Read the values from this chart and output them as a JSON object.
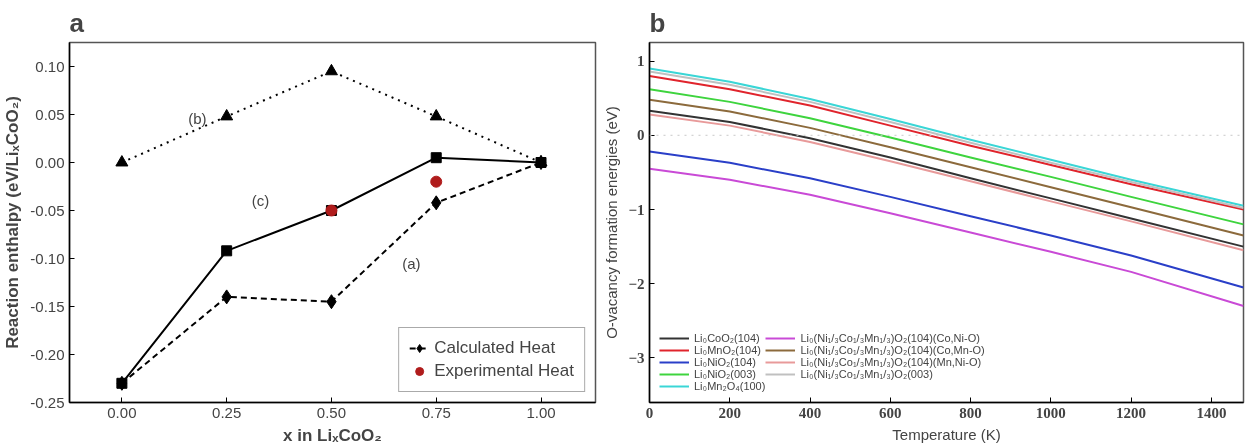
{
  "chart_data": [
    {
      "type": "line",
      "title": "a",
      "xlabel": "x in LiₓCoO₂",
      "ylabel": "Reaction enthalpy (eV/LiₓCoO₂)",
      "x": [
        0,
        0.25,
        0.5,
        0.75,
        1.0
      ],
      "xlim": [
        -0.125,
        1.13
      ],
      "ylim": [
        -0.25,
        0.125
      ],
      "xticks": [
        {
          "value": 0,
          "label": "0.00"
        },
        {
          "value": 0.25,
          "label": "0.25"
        },
        {
          "value": 0.5,
          "label": "0.50"
        },
        {
          "value": 0.75,
          "label": "0.75"
        },
        {
          "value": 1.0,
          "label": "1.00"
        }
      ],
      "yticks": [
        {
          "value": -0.25,
          "label": "-0.25"
        },
        {
          "value": -0.2,
          "label": "-0.20"
        },
        {
          "value": -0.15,
          "label": "-0.15"
        },
        {
          "value": -0.1,
          "label": "-0.10"
        },
        {
          "value": -0.05,
          "label": "-0.05"
        },
        {
          "value": 0,
          "label": "0.00"
        },
        {
          "value": 0.05,
          "label": "0.05"
        },
        {
          "value": 0.1,
          "label": "0.10"
        }
      ],
      "grid": false,
      "legend": "bottom right",
      "series": [
        {
          "name": "Calculated Heat",
          "type": "line",
          "color": "#000000",
          "marker": "diamond",
          "line_style": "dashed",
          "values": [
            -0.23,
            -0.14,
            -0.145,
            -0.042,
            0.0
          ]
        },
        {
          "type": "line",
          "color": "#000000",
          "marker": "triangle",
          "line_style": "dotted",
          "values": [
            0.0,
            0.048,
            0.095,
            0.048,
            0.0
          ]
        },
        {
          "type": "line",
          "color": "#000000",
          "marker": "square",
          "line_style": "solid",
          "values": [
            -0.23,
            -0.092,
            -0.05,
            0.005,
            0.0
          ]
        },
        {
          "name": "Experimental Heat",
          "type": "scatter",
          "color": "#b01c1c",
          "marker": "circle",
          "x": [
            0.5,
            0.75
          ],
          "values": [
            -0.05,
            -0.02
          ]
        }
      ],
      "annotations": [
        "(a)",
        "(b)",
        "(c)"
      ]
    },
    {
      "type": "line",
      "title": "b",
      "xlabel": "Temperature (K)",
      "ylabel": "O-vacancy formation energies (eV)",
      "x": [
        0,
        200,
        400,
        600,
        800,
        1000,
        1200,
        1480
      ],
      "xlim": [
        0,
        1480
      ],
      "ylim": [
        -3.6,
        1.25
      ],
      "xticks": [
        0,
        200,
        400,
        600,
        800,
        1000,
        1200,
        1400
      ],
      "yticks": [
        -3,
        -2,
        -1,
        0,
        1
      ],
      "grid": false,
      "legend": "bottom left",
      "ref_lines": [
        {
          "axis": "y",
          "value": 0,
          "color": "#c8c8c8",
          "line_style": "dotted"
        }
      ],
      "series": [
        {
          "name": "Li₀CoO₂(104)",
          "color": "#333333",
          "values": [
            0.33,
            0.18,
            -0.04,
            -0.3,
            -0.58,
            -0.85,
            -1.12,
            -1.5
          ]
        },
        {
          "name": "Li₀MnO₂(104)",
          "color": "#e0242c",
          "values": [
            0.8,
            0.62,
            0.4,
            0.13,
            -0.14,
            -0.4,
            -0.66,
            -1.0
          ]
        },
        {
          "name": "Li₀NiO₂(104)",
          "color": "#2a3fc8",
          "values": [
            -0.22,
            -0.37,
            -0.58,
            -0.83,
            -1.09,
            -1.35,
            -1.62,
            -2.05
          ]
        },
        {
          "name": "Li₀NiO₂(003)",
          "color": "#3ed43e",
          "values": [
            0.62,
            0.45,
            0.23,
            -0.03,
            -0.3,
            -0.56,
            -0.83,
            -1.2
          ]
        },
        {
          "name": "Li₀Mn₂O₄(100)",
          "color": "#3ad6d6",
          "values": [
            0.9,
            0.72,
            0.49,
            0.22,
            -0.06,
            -0.33,
            -0.6,
            -0.95
          ]
        },
        {
          "name": "Li₀(Ni₁/₃Co₁/₃Mn₁/₃)O₂(104)(Co,Ni-O)",
          "color": "#c94ad6",
          "values": [
            -0.45,
            -0.6,
            -0.8,
            -1.05,
            -1.31,
            -1.57,
            -1.84,
            -2.3
          ]
        },
        {
          "name": "Li₀(Ni₁/₃Co₁/₃Mn₁/₃)O₂(104)(Co,Mn-O)",
          "color": "#8c6a3c",
          "values": [
            0.48,
            0.32,
            0.1,
            -0.16,
            -0.43,
            -0.7,
            -0.97,
            -1.35
          ]
        },
        {
          "name": "Li₀(Ni₁/₃Co₁/₃Mn₁/₃)O₂(104)(Mn,Ni-O)",
          "color": "#e89a9a",
          "values": [
            0.28,
            0.13,
            -0.09,
            -0.35,
            -0.62,
            -0.89,
            -1.16,
            -1.55
          ]
        },
        {
          "name": "Li₀(Ni₁/₃Co₁/₃Mn₁/₃)O₂(003)",
          "color": "#c0c0c0",
          "values": [
            0.86,
            0.68,
            0.45,
            0.18,
            -0.1,
            -0.37,
            -0.63,
            -0.98
          ]
        }
      ]
    }
  ]
}
